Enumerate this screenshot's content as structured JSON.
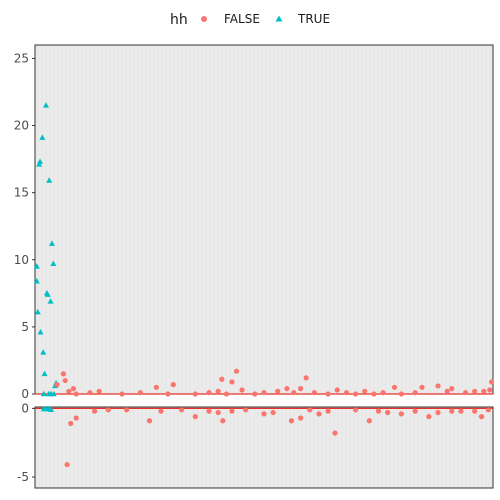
{
  "chart_data": {
    "type": "scatter",
    "title": "",
    "xlabel": "",
    "ylabel": "",
    "grid": true,
    "legend": {
      "title": "hh",
      "placement": "top",
      "entries": [
        {
          "label": "FALSE",
          "shape": "circle",
          "color": "#f8766d"
        },
        {
          "label": "TRUE",
          "shape": "triangle",
          "color": "#00bfc4"
        }
      ]
    },
    "colors": {
      "FALSE": "#f8766d",
      "TRUE": "#00bfc4",
      "panel_bg": "#ebebeb",
      "reference_line": "#e8302b"
    },
    "xlim": [
      0,
      1
    ],
    "panels": [
      {
        "name": "top",
        "ylim": [
          0,
          26
        ],
        "yticks": [
          0,
          5,
          10,
          15,
          20,
          25
        ],
        "ytick_labels": [
          "0",
          "5",
          "10",
          "15",
          "20",
          "25"
        ],
        "reference_line": 0,
        "series": [
          {
            "name": "TRUE",
            "points": [
              [
                0.004,
                9.5
              ],
              [
                0.004,
                8.4
              ],
              [
                0.006,
                6.1
              ],
              [
                0.009,
                17.1
              ],
              [
                0.011,
                17.3
              ],
              [
                0.012,
                4.6
              ],
              [
                0.016,
                19.1
              ],
              [
                0.018,
                3.1
              ],
              [
                0.019,
                0.0
              ],
              [
                0.021,
                1.5
              ],
              [
                0.024,
                21.5
              ],
              [
                0.026,
                7.5
              ],
              [
                0.028,
                7.4
              ],
              [
                0.031,
                15.9
              ],
              [
                0.034,
                6.9
              ],
              [
                0.037,
                11.2
              ],
              [
                0.04,
                9.7
              ],
              [
                0.041,
                0.0
              ],
              [
                0.044,
                0.6
              ],
              [
                0.046,
                0.8
              ],
              [
                0.03,
                0.0
              ],
              [
                0.035,
                0.0
              ]
            ]
          },
          {
            "name": "FALSE",
            "points": [
              [
                0.048,
                0.7
              ],
              [
                0.062,
                1.5
              ],
              [
                0.066,
                1.0
              ],
              [
                0.074,
                0.2
              ],
              [
                0.084,
                0.4
              ],
              [
                0.09,
                0.0
              ],
              [
                0.12,
                0.1
              ],
              [
                0.14,
                0.2
              ],
              [
                0.19,
                0.0
              ],
              [
                0.23,
                0.1
              ],
              [
                0.265,
                0.5
              ],
              [
                0.29,
                0.0
              ],
              [
                0.302,
                0.7
              ],
              [
                0.35,
                0.0
              ],
              [
                0.38,
                0.1
              ],
              [
                0.4,
                0.2
              ],
              [
                0.408,
                1.1
              ],
              [
                0.418,
                0.0
              ],
              [
                0.43,
                0.9
              ],
              [
                0.44,
                1.7
              ],
              [
                0.452,
                0.3
              ],
              [
                0.48,
                0.0
              ],
              [
                0.5,
                0.1
              ],
              [
                0.53,
                0.2
              ],
              [
                0.55,
                0.4
              ],
              [
                0.565,
                0.1
              ],
              [
                0.58,
                0.4
              ],
              [
                0.592,
                1.2
              ],
              [
                0.61,
                0.1
              ],
              [
                0.64,
                0.0
              ],
              [
                0.66,
                0.3
              ],
              [
                0.68,
                0.1
              ],
              [
                0.7,
                0.0
              ],
              [
                0.72,
                0.2
              ],
              [
                0.74,
                0.0
              ],
              [
                0.76,
                0.1
              ],
              [
                0.785,
                0.5
              ],
              [
                0.8,
                0.0
              ],
              [
                0.83,
                0.1
              ],
              [
                0.845,
                0.5
              ],
              [
                0.88,
                0.6
              ],
              [
                0.9,
                0.2
              ],
              [
                0.91,
                0.4
              ],
              [
                0.94,
                0.1
              ],
              [
                0.96,
                0.2
              ],
              [
                0.98,
                0.2
              ],
              [
                0.993,
                0.3
              ],
              [
                0.997,
                0.9
              ]
            ]
          }
        ]
      },
      {
        "name": "bottom",
        "ylim": [
          -5.8,
          0.1
        ],
        "yticks": [
          0,
          -5
        ],
        "ytick_labels": [
          "0",
          "-5"
        ],
        "reference_line": 0,
        "series": [
          {
            "name": "TRUE",
            "points": [
              [
                0.019,
                -0.05
              ],
              [
                0.024,
                -0.05
              ],
              [
                0.03,
                -0.05
              ],
              [
                0.035,
                -0.1
              ]
            ]
          },
          {
            "name": "FALSE",
            "points": [
              [
                0.07,
                -4.1
              ],
              [
                0.078,
                -1.1
              ],
              [
                0.09,
                -0.7
              ],
              [
                0.13,
                -0.2
              ],
              [
                0.16,
                -0.1
              ],
              [
                0.2,
                -0.1
              ],
              [
                0.25,
                -0.9
              ],
              [
                0.275,
                -0.2
              ],
              [
                0.32,
                -0.1
              ],
              [
                0.35,
                -0.6
              ],
              [
                0.38,
                -0.2
              ],
              [
                0.4,
                -0.3
              ],
              [
                0.41,
                -0.9
              ],
              [
                0.43,
                -0.2
              ],
              [
                0.46,
                -0.1
              ],
              [
                0.5,
                -0.4
              ],
              [
                0.52,
                -0.3
              ],
              [
                0.56,
                -0.9
              ],
              [
                0.58,
                -0.7
              ],
              [
                0.6,
                -0.1
              ],
              [
                0.62,
                -0.4
              ],
              [
                0.64,
                -0.2
              ],
              [
                0.655,
                -1.8
              ],
              [
                0.7,
                -0.1
              ],
              [
                0.73,
                -0.9
              ],
              [
                0.75,
                -0.2
              ],
              [
                0.77,
                -0.3
              ],
              [
                0.8,
                -0.4
              ],
              [
                0.83,
                -0.2
              ],
              [
                0.86,
                -0.6
              ],
              [
                0.88,
                -0.3
              ],
              [
                0.91,
                -0.2
              ],
              [
                0.93,
                -0.2
              ],
              [
                0.96,
                -0.2
              ],
              [
                0.975,
                -0.6
              ],
              [
                0.99,
                -0.1
              ]
            ]
          }
        ]
      }
    ]
  }
}
